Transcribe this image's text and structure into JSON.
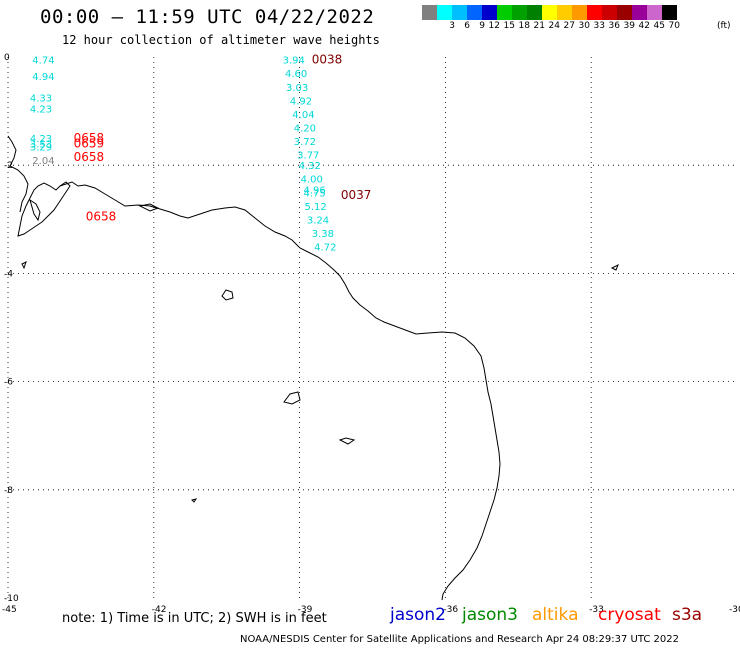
{
  "header": {
    "title": "00:00 – 11:59 UTC 04/22/2022",
    "subtitle": "12 hour collection of altimeter wave heights"
  },
  "colorbar": {
    "unit": "(ft)",
    "bins": [
      {
        "label": "",
        "color": "#808080"
      },
      {
        "label": "3",
        "color": "#00ffff"
      },
      {
        "label": "6",
        "color": "#00bfff"
      },
      {
        "label": "9",
        "color": "#0066ff"
      },
      {
        "label": "12",
        "color": "#0000cd"
      },
      {
        "label": "15",
        "color": "#00cc00"
      },
      {
        "label": "18",
        "color": "#00a000"
      },
      {
        "label": "21",
        "color": "#008000"
      },
      {
        "label": "24",
        "color": "#ffff00"
      },
      {
        "label": "27",
        "color": "#ffcc00"
      },
      {
        "label": "30",
        "color": "#ff9900"
      },
      {
        "label": "33",
        "color": "#ff0000"
      },
      {
        "label": "36",
        "color": "#cc0000"
      },
      {
        "label": "39",
        "color": "#990000"
      },
      {
        "label": "42",
        "color": "#990099"
      },
      {
        "label": "45",
        "color": "#cc66cc"
      },
      {
        "label": "70",
        "color": "#000000"
      }
    ]
  },
  "axes": {
    "lon_ticks": [
      "-45",
      "-42",
      "-39",
      "-36",
      "-33",
      "-30"
    ],
    "lat_ticks": [
      "0",
      "-2",
      "-4",
      "-6",
      "-8",
      "-10"
    ]
  },
  "observations": {
    "track1": [
      {
        "lat": -0.05,
        "lon": -44.5,
        "value": "4.74",
        "color": "#00d8d8"
      },
      {
        "lat": -0.35,
        "lon": -44.5,
        "value": "4.94",
        "color": "#00d8d8"
      },
      {
        "lat": -0.75,
        "lon": -44.55,
        "value": "4.33",
        "color": "#00d8d8"
      },
      {
        "lat": -0.95,
        "lon": -44.55,
        "value": "4.23",
        "color": "#00d8d8"
      },
      {
        "lat": -1.5,
        "lon": -44.55,
        "value": "4.23",
        "color": "#00d8d8"
      },
      {
        "lat": -1.65,
        "lon": -44.55,
        "value": "3.29",
        "color": "#00d8d8"
      },
      {
        "lat": -1.6,
        "lon": -44.55,
        "value": "3.53",
        "color": "#00d8d8"
      },
      {
        "lat": -1.9,
        "lon": -44.5,
        "value": "2.04",
        "color": "#808080"
      }
    ],
    "track2": [
      {
        "lat": -0.05,
        "lon": -39.35,
        "value": "3.94",
        "color": "#00d8d8"
      },
      {
        "lat": -0.3,
        "lon": -39.3,
        "value": "4.60",
        "color": "#00d8d8"
      },
      {
        "lat": -0.55,
        "lon": -39.28,
        "value": "3.03",
        "color": "#00d8d8"
      },
      {
        "lat": -0.8,
        "lon": -39.2,
        "value": "4.92",
        "color": "#00d8d8"
      },
      {
        "lat": -1.05,
        "lon": -39.15,
        "value": "4.04",
        "color": "#00d8d8"
      },
      {
        "lat": -1.3,
        "lon": -39.12,
        "value": "4.20",
        "color": "#00d8d8"
      },
      {
        "lat": -1.55,
        "lon": -39.12,
        "value": "3.72",
        "color": "#00d8d8"
      },
      {
        "lat": -1.8,
        "lon": -39.05,
        "value": "3.77",
        "color": "#00d8d8"
      },
      {
        "lat": -2.0,
        "lon": -39.02,
        "value": "4.32",
        "color": "#00d8d8"
      },
      {
        "lat": -2.25,
        "lon": -38.98,
        "value": "4.00",
        "color": "#00d8d8"
      },
      {
        "lat": -2.45,
        "lon": -38.92,
        "value": "4.96",
        "color": "#00d8d8"
      },
      {
        "lat": -2.5,
        "lon": -38.92,
        "value": "4.75",
        "color": "#00d8d8"
      },
      {
        "lat": -2.75,
        "lon": -38.9,
        "value": "5.12",
        "color": "#00d8d8"
      },
      {
        "lat": -3.0,
        "lon": -38.85,
        "value": "3.24",
        "color": "#00d8d8"
      },
      {
        "lat": -3.25,
        "lon": -38.75,
        "value": "3.38",
        "color": "#00d8d8"
      },
      {
        "lat": -3.5,
        "lon": -38.7,
        "value": "4.72",
        "color": "#00d8d8"
      }
    ],
    "times": [
      {
        "lat": -0.05,
        "lon": -38.75,
        "value": "0038",
        "color": "#800000"
      },
      {
        "lat": -2.55,
        "lon": -38.15,
        "value": "0037",
        "color": "#800000"
      },
      {
        "lat": -1.5,
        "lon": -43.65,
        "value": "0658",
        "color": "#ff0000"
      },
      {
        "lat": -1.6,
        "lon": -43.65,
        "value": "0659",
        "color": "#ff0000"
      },
      {
        "lat": -1.85,
        "lon": -43.65,
        "value": "0658",
        "color": "#ff0000"
      },
      {
        "lat": -2.95,
        "lon": -43.4,
        "value": "0658",
        "color": "#ff0000"
      }
    ]
  },
  "footer": {
    "note": "note: 1) Time is in UTC; 2) SWH is in feet",
    "credit": "NOAA/NESDIS Center for Satellite Applications and Research    Apr 24 08:29:37 UTC 2022",
    "satellites": [
      {
        "name": "jason2",
        "color": "#0000cc"
      },
      {
        "name": "jason3",
        "color": "#008800"
      },
      {
        "name": "altika",
        "color": "#ff9900"
      },
      {
        "name": "cryosat",
        "color": "#ff0000"
      },
      {
        "name": "s3a",
        "color": "#990000"
      }
    ]
  }
}
